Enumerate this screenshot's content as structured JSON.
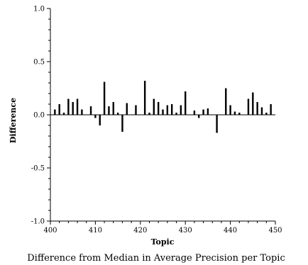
{
  "chart_data": {
    "type": "bar",
    "title": "Difference from Median in Average Precision per Topic",
    "xlabel": "Topic",
    "ylabel": "Difference",
    "xlim": [
      400,
      450
    ],
    "ylim": [
      -1.0,
      1.0
    ],
    "x_ticks": [
      400,
      410,
      420,
      430,
      440,
      450
    ],
    "x_tick_labels": [
      "400",
      "410",
      "420",
      "430",
      "440",
      "450"
    ],
    "y_ticks": [
      -1.0,
      -0.5,
      0.0,
      0.5,
      1.0
    ],
    "y_tick_labels": [
      "-1.0",
      "-0.5",
      "0.0",
      "0.5",
      "1.0"
    ],
    "grid": false,
    "x": [
      401,
      402,
      403,
      404,
      405,
      406,
      407,
      408,
      409,
      410,
      411,
      412,
      413,
      414,
      415,
      416,
      417,
      418,
      419,
      420,
      421,
      422,
      423,
      424,
      425,
      426,
      427,
      428,
      429,
      430,
      431,
      432,
      433,
      434,
      435,
      436,
      437,
      438,
      439,
      440,
      441,
      442,
      443,
      444,
      445,
      446,
      447,
      448,
      449,
      450
    ],
    "values": [
      0.05,
      0.1,
      0.02,
      0.15,
      0.12,
      0.15,
      0.05,
      0.0,
      0.08,
      -0.03,
      -0.1,
      0.31,
      0.08,
      0.12,
      0.02,
      -0.16,
      0.11,
      0.0,
      0.09,
      0.0,
      0.32,
      0.02,
      0.15,
      0.12,
      0.05,
      0.09,
      0.1,
      0.02,
      0.09,
      0.22,
      0.0,
      0.04,
      -0.03,
      0.05,
      0.06,
      0.0,
      -0.17,
      0.0,
      0.25,
      0.09,
      0.03,
      0.02,
      0.0,
      0.15,
      0.21,
      0.12,
      0.07,
      0.02,
      0.1,
      0.0
    ]
  }
}
